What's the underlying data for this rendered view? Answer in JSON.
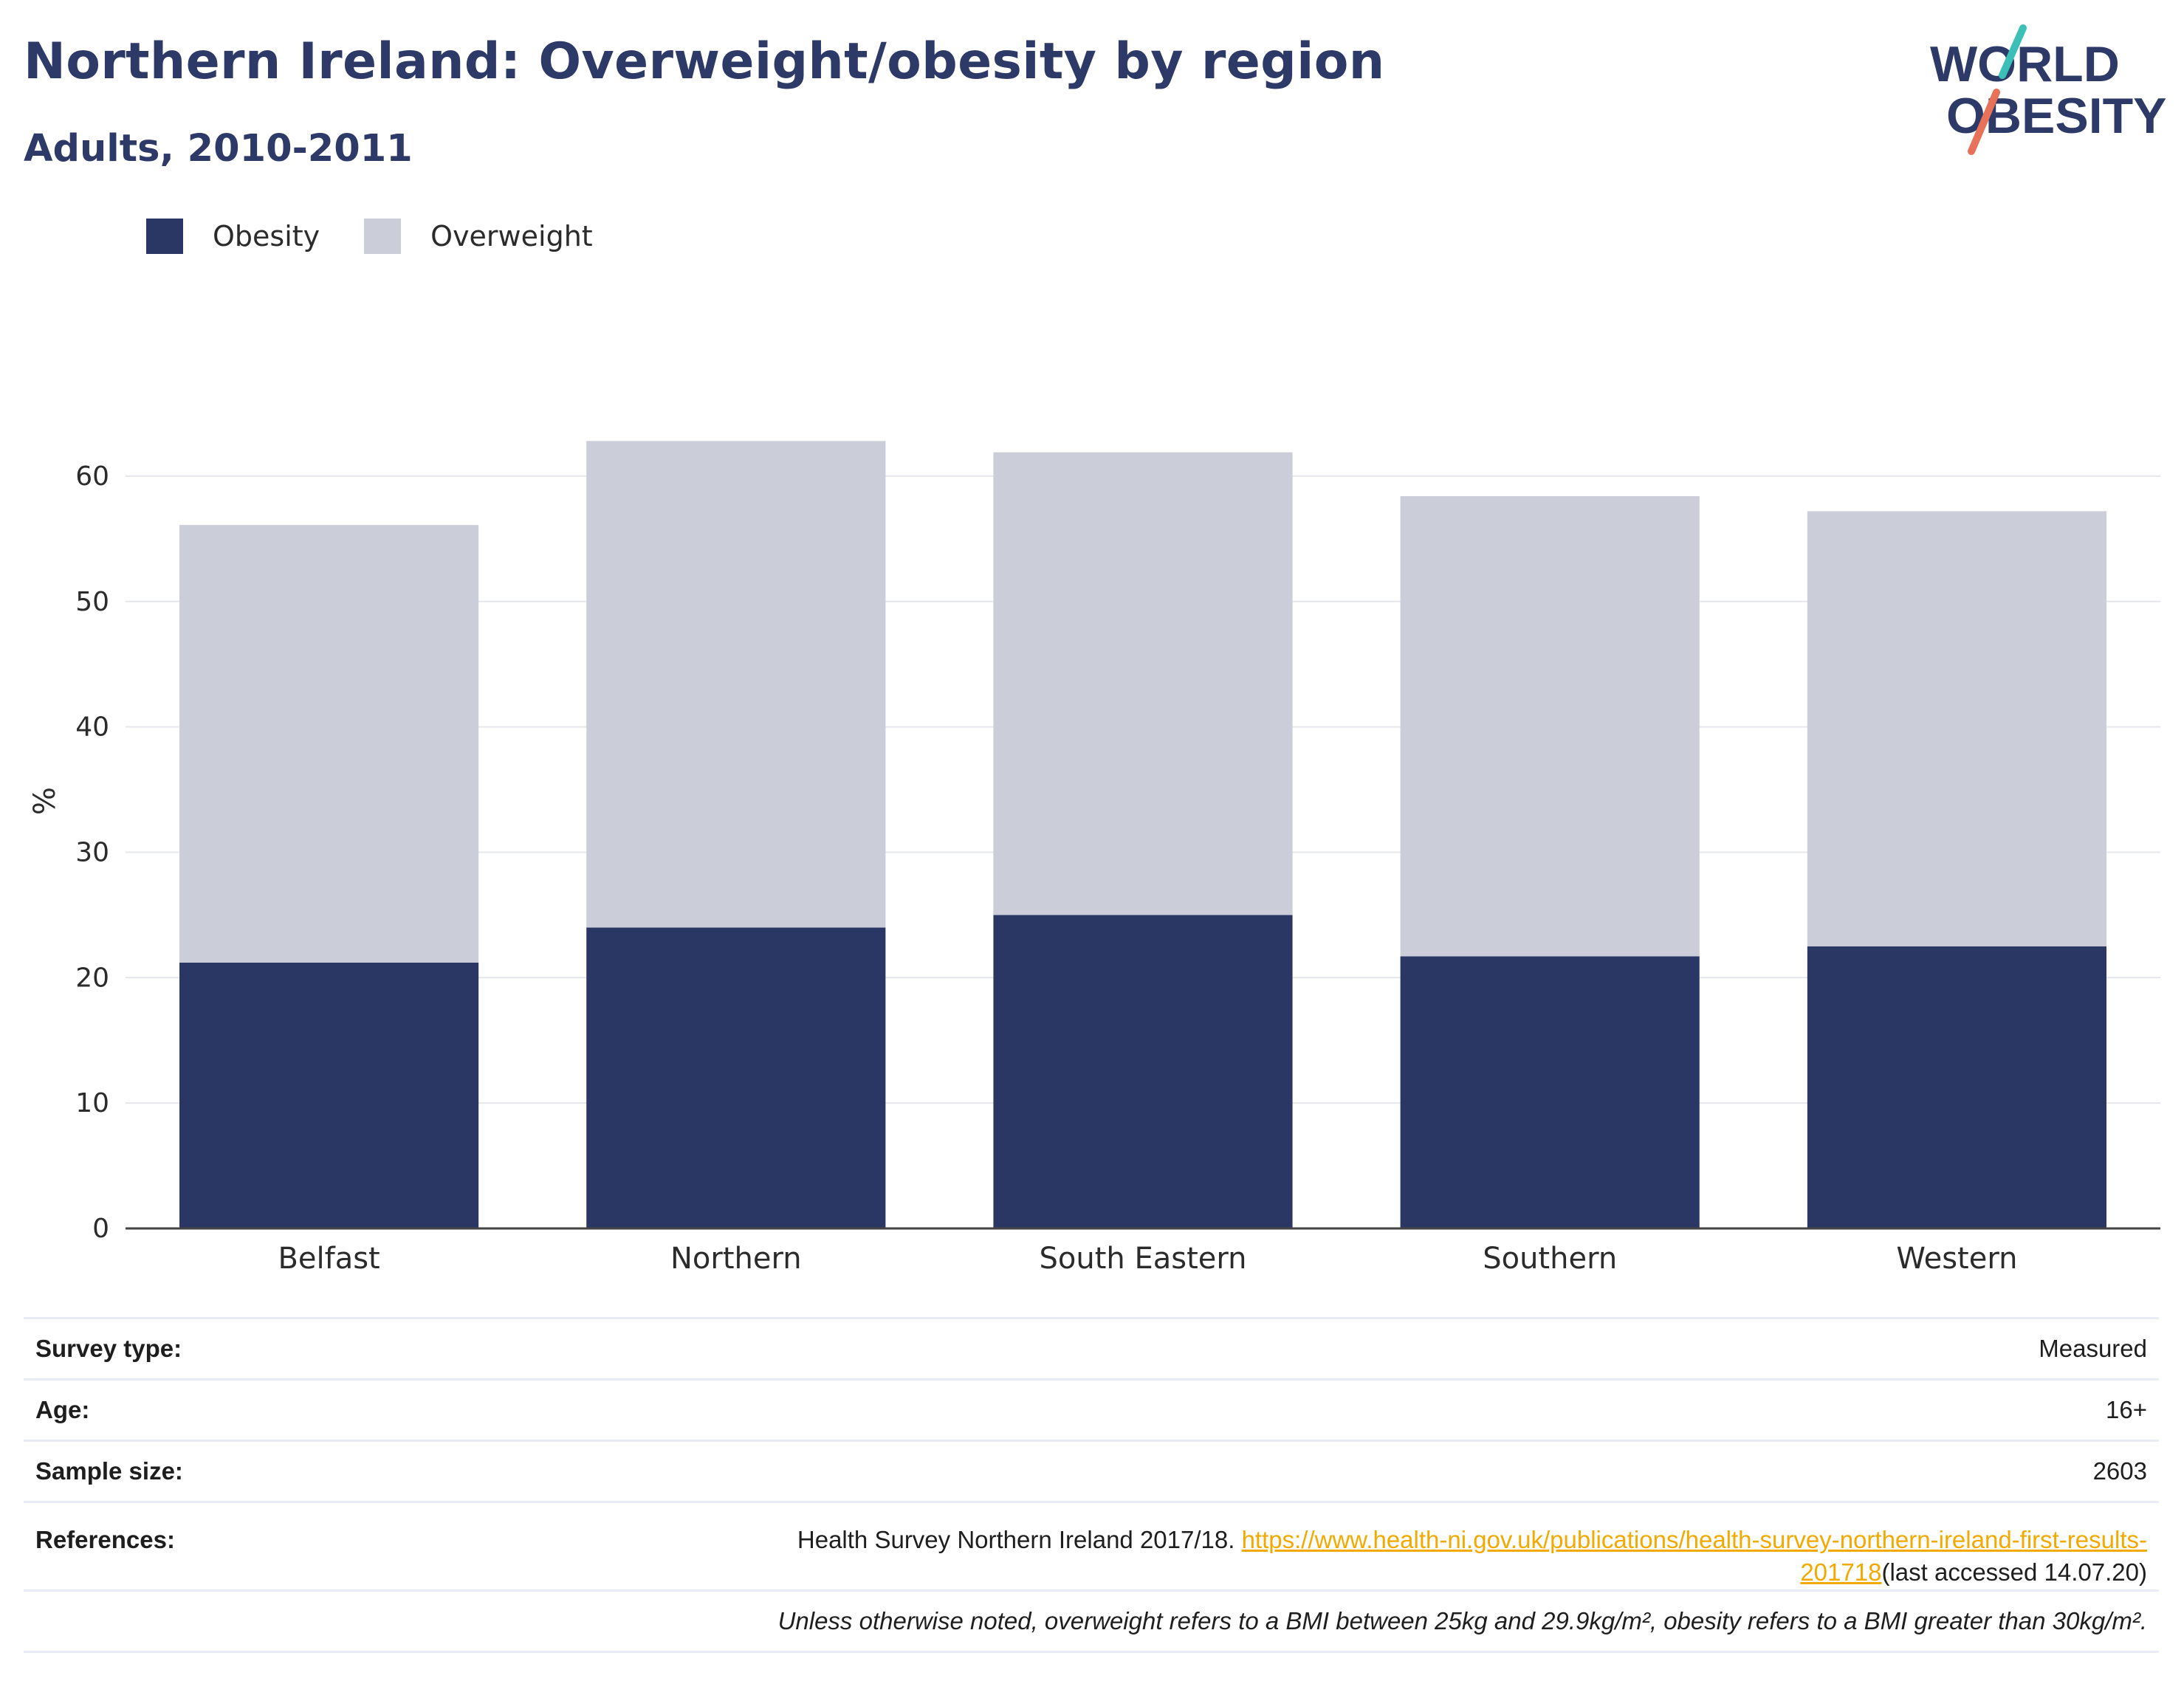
{
  "header": {
    "title": "Northern Ireland: Overweight/obesity by region",
    "subtitle": "Adults, 2010-2011"
  },
  "logo": {
    "line1": "WORLD",
    "line2": "OBESITY"
  },
  "colors": {
    "obesity": "#2a3663",
    "overweight": "#cbcdd8",
    "text": "#2d3a68",
    "link": "#f2a900"
  },
  "chart_data": {
    "type": "bar",
    "stacked": true,
    "categories": [
      "Belfast",
      "Northern",
      "South Eastern",
      "Southern",
      "Western"
    ],
    "series": [
      {
        "name": "Obesity",
        "values": [
          21.2,
          24.0,
          25.0,
          21.7,
          22.5
        ]
      },
      {
        "name": "Overweight",
        "values": [
          34.9,
          38.8,
          36.9,
          36.7,
          34.7
        ]
      }
    ],
    "xlabel": "",
    "ylabel": "%",
    "ylim": [
      0,
      65
    ],
    "yticks": [
      0,
      10,
      20,
      30,
      40,
      50,
      60
    ],
    "grid": true,
    "legend": "top-left"
  },
  "info": {
    "survey_type_label": "Survey type:",
    "survey_type_value": "Measured",
    "age_label": "Age:",
    "age_value": "16+",
    "sample_label": "Sample size:",
    "sample_value": "2603",
    "references_label": "References:",
    "references_text": "Health Survey Northern Ireland 2017/18. ",
    "references_link": "https://www.health-ni.gov.uk/publications/health-survey-northern-ireland-first-results-201718",
    "references_suffix": "(last accessed 14.07.20)",
    "note": "Unless otherwise noted, overweight refers to a BMI between 25kg and 29.9kg/m², obesity refers to a BMI greater than 30kg/m²."
  }
}
